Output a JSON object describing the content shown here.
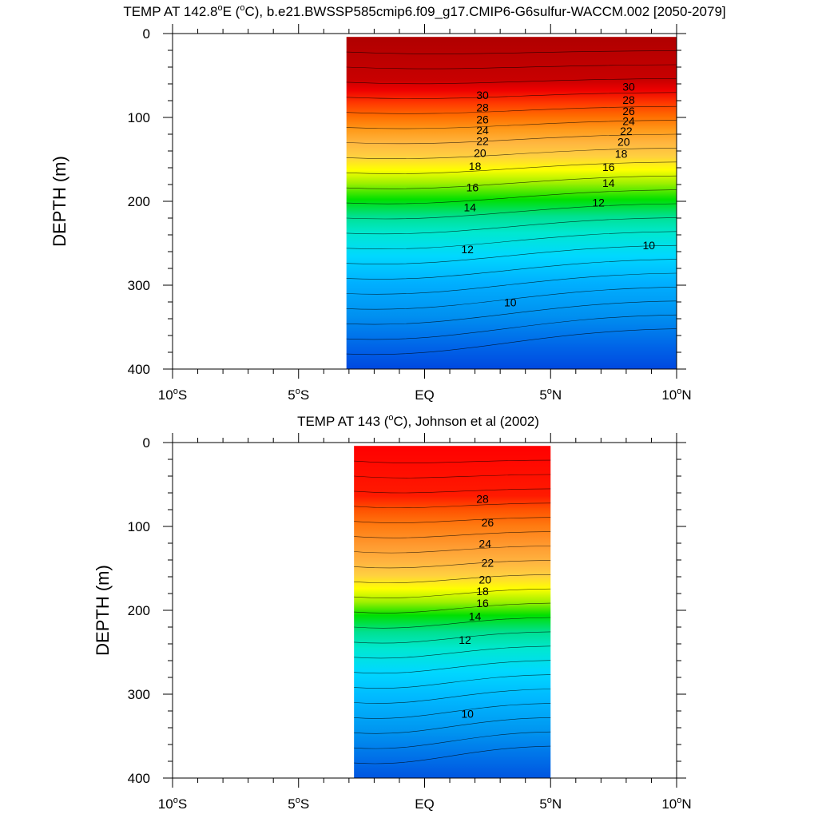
{
  "chart_data": [
    {
      "type": "contour",
      "title_prefix": "TEMP AT 142.8",
      "title_deg": "o",
      "title_suffix": "E (",
      "title_unit_deg": "o",
      "title_rest": "C), b.e21.BWSSP585cmip6.f09_g17.CMIP6-G6sulfur-WACCM.002 [2050-2079]",
      "ylabel": "DEPTH (m)",
      "x_range": [
        -10,
        10
      ],
      "y_range": [
        0,
        400
      ],
      "y_ticks": [
        "0",
        "100",
        "200",
        "300",
        "400"
      ],
      "y_tick_values": [
        0,
        100,
        200,
        300,
        400
      ],
      "x_ticks": [
        {
          "value": -10,
          "num": "10",
          "sup": "o",
          "hemi": "S"
        },
        {
          "value": -5,
          "num": "5",
          "sup": "o",
          "hemi": "S"
        },
        {
          "value": 0,
          "num": "EQ",
          "sup": "",
          "hemi": ""
        },
        {
          "value": 5,
          "num": "5",
          "sup": "o",
          "hemi": "N"
        },
        {
          "value": 10,
          "num": "10",
          "sup": "o",
          "hemi": "N"
        }
      ],
      "data_x_range": [
        -3.1,
        10
      ],
      "data_y_top": 4,
      "contour_labels": [
        {
          "text": "30",
          "x": 2.3,
          "y": 78
        },
        {
          "text": "28",
          "x": 2.3,
          "y": 93
        },
        {
          "text": "26",
          "x": 2.3,
          "y": 107
        },
        {
          "text": "24",
          "x": 2.3,
          "y": 120
        },
        {
          "text": "22",
          "x": 2.3,
          "y": 133
        },
        {
          "text": "20",
          "x": 2.2,
          "y": 147
        },
        {
          "text": "18",
          "x": 2.0,
          "y": 163
        },
        {
          "text": "16",
          "x": 1.9,
          "y": 188
        },
        {
          "text": "14",
          "x": 1.8,
          "y": 212
        },
        {
          "text": "12",
          "x": 1.7,
          "y": 262
        },
        {
          "text": "10",
          "x": 3.4,
          "y": 325
        },
        {
          "text": "30",
          "x": 8.1,
          "y": 68
        },
        {
          "text": "28",
          "x": 8.1,
          "y": 84
        },
        {
          "text": "26",
          "x": 8.1,
          "y": 97
        },
        {
          "text": "24",
          "x": 8.1,
          "y": 109
        },
        {
          "text": "22",
          "x": 8.0,
          "y": 121
        },
        {
          "text": "20",
          "x": 7.9,
          "y": 134
        },
        {
          "text": "18",
          "x": 7.8,
          "y": 148
        },
        {
          "text": "16",
          "x": 7.3,
          "y": 164
        },
        {
          "text": "14",
          "x": 7.3,
          "y": 183
        },
        {
          "text": "12",
          "x": 6.9,
          "y": 206
        },
        {
          "text": "10",
          "x": 8.9,
          "y": 257
        }
      ]
    },
    {
      "type": "contour",
      "title_prefix": "TEMP AT 143 (",
      "title_deg": "o",
      "title_suffix": "C), Johnson et al (2002)",
      "title_unit_deg": "",
      "title_rest": "",
      "ylabel": "DEPTH (m)",
      "x_range": [
        -10,
        10
      ],
      "y_range": [
        0,
        400
      ],
      "y_ticks": [
        "0",
        "100",
        "200",
        "300",
        "400"
      ],
      "y_tick_values": [
        0,
        100,
        200,
        300,
        400
      ],
      "x_ticks": [
        {
          "value": -10,
          "num": "10",
          "sup": "o",
          "hemi": "S"
        },
        {
          "value": -5,
          "num": "5",
          "sup": "o",
          "hemi": "S"
        },
        {
          "value": 0,
          "num": "EQ",
          "sup": "",
          "hemi": ""
        },
        {
          "value": 5,
          "num": "5",
          "sup": "o",
          "hemi": "N"
        },
        {
          "value": 10,
          "num": "10",
          "sup": "o",
          "hemi": "N"
        }
      ],
      "data_x_range": [
        -2.8,
        5
      ],
      "data_y_top": 4,
      "contour_labels": [
        {
          "text": "28",
          "x": 2.3,
          "y": 72
        },
        {
          "text": "26",
          "x": 2.5,
          "y": 100
        },
        {
          "text": "24",
          "x": 2.4,
          "y": 125
        },
        {
          "text": "22",
          "x": 2.5,
          "y": 148
        },
        {
          "text": "20",
          "x": 2.4,
          "y": 168
        },
        {
          "text": "18",
          "x": 2.3,
          "y": 182
        },
        {
          "text": "16",
          "x": 2.3,
          "y": 196
        },
        {
          "text": "14",
          "x": 2.0,
          "y": 212
        },
        {
          "text": "12",
          "x": 1.6,
          "y": 240
        },
        {
          "text": "10",
          "x": 1.7,
          "y": 328
        }
      ]
    }
  ]
}
